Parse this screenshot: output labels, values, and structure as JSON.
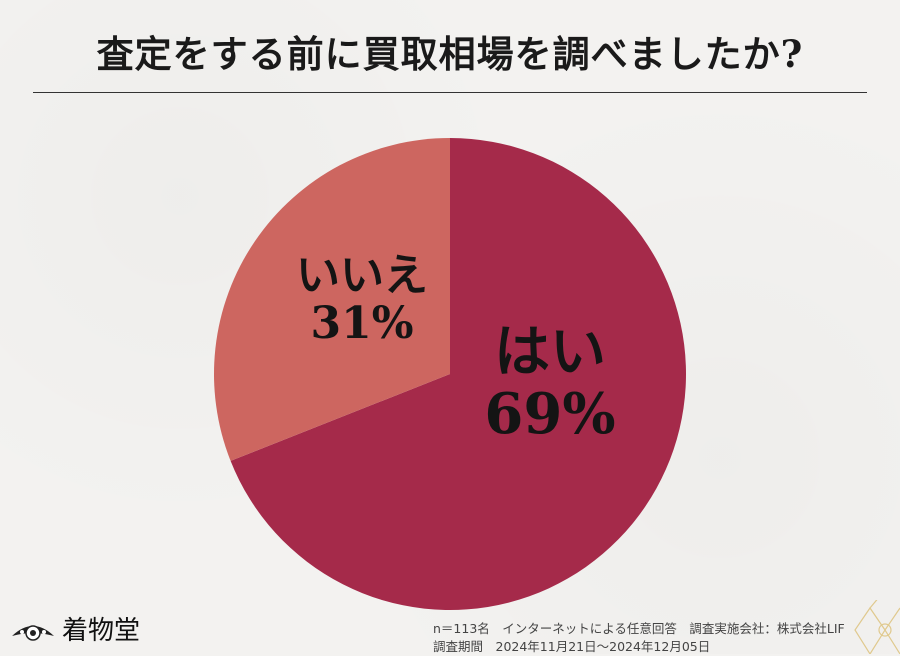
{
  "title": "査定をする前に買取相場を調べましたか?",
  "chart_data": {
    "type": "pie",
    "title": "査定をする前に買取相場を調べましたか?",
    "slices": [
      {
        "label": "はい",
        "value": 69,
        "value_label": "69%",
        "color": "#a52a4a"
      },
      {
        "label": "いいえ",
        "value": 31,
        "value_label": "31%",
        "color": "#cd6660"
      }
    ],
    "start": "12 o'clock",
    "direction": "clockwise"
  },
  "logo": {
    "text": "着物堂",
    "icon": "kimono-fan-icon"
  },
  "footer": {
    "line1": "n＝113名　インターネットによる任意回答　調査実施会社：株式会社LIF",
    "line2": "調査期間　2024年11月21日～2024年12月05日"
  },
  "colors": {
    "background": "#f3f2f0",
    "text": "#1a1a1a",
    "corner_gold": "#e0c98e"
  }
}
